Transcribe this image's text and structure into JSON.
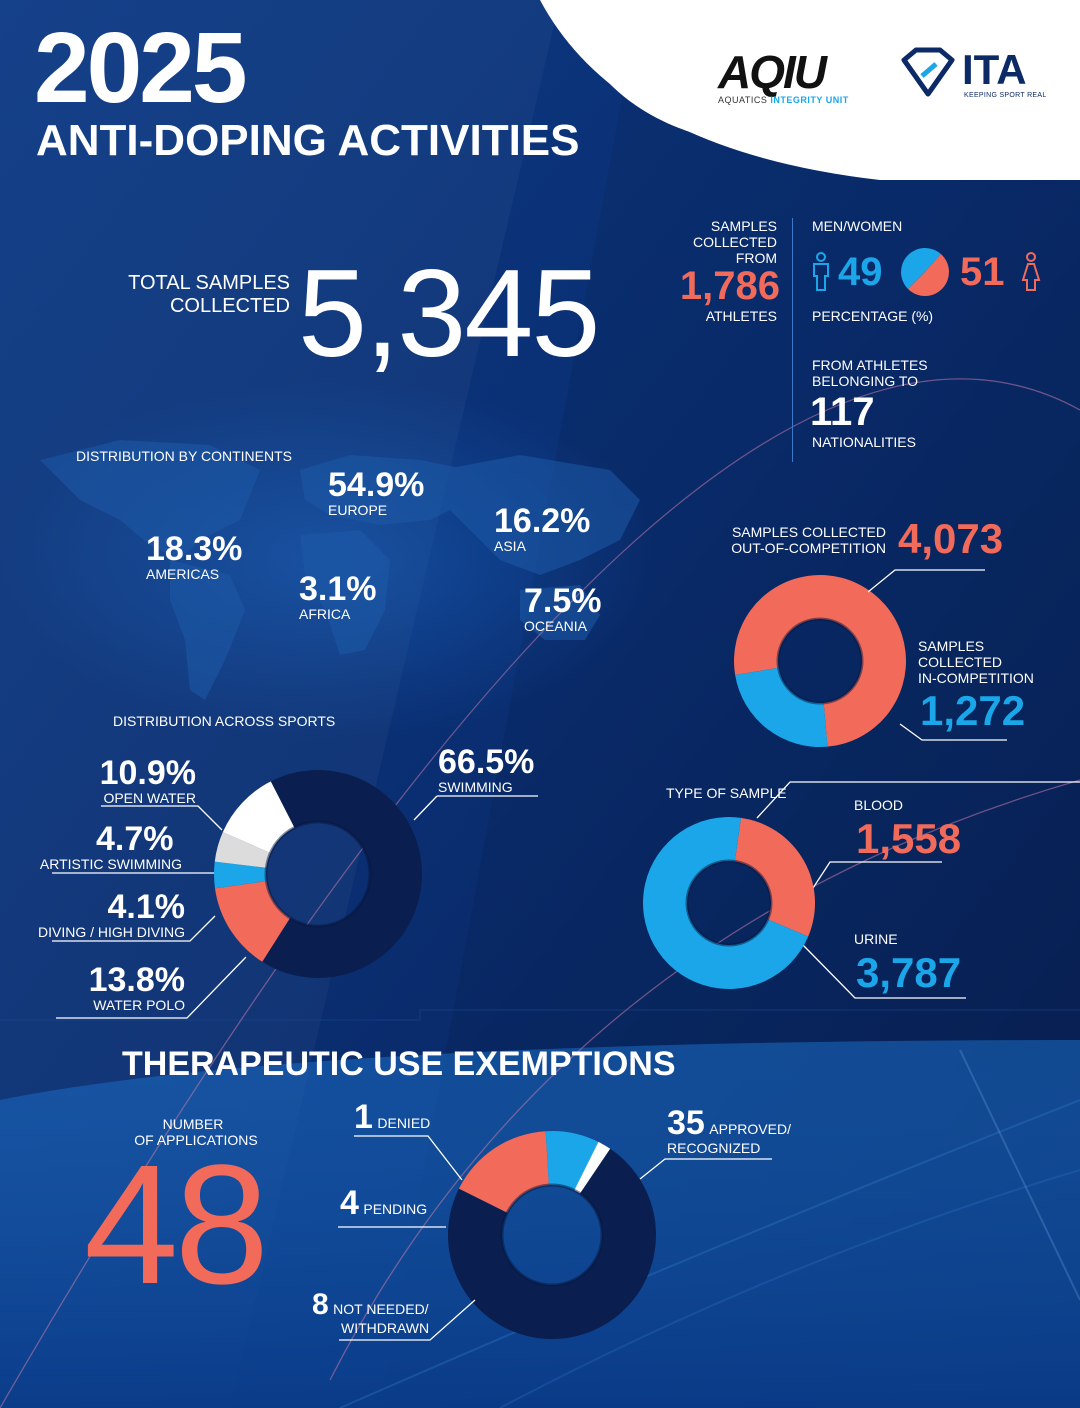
{
  "header": {
    "year": "2025",
    "title": "ANTI-DOPING ACTIVITIES",
    "aqiu_logo": "AQIU",
    "aqiu_sub1": "AQUATICS",
    "aqiu_sub2": "INTEGRITY UNIT",
    "ita_logo": "ITA",
    "ita_sub": "KEEPING SPORT REAL"
  },
  "totals": {
    "total_label_1": "TOTAL SAMPLES",
    "total_label_2": "COLLECTED",
    "total_value": "5,345",
    "athletes_label_1": "SAMPLES",
    "athletes_label_2": "COLLECTED",
    "athletes_label_3": "FROM",
    "athletes_value": "1,786",
    "athletes_label_4": "ATHLETES",
    "men_women_label": "MEN/WOMEN",
    "men_value": "49",
    "women_value": "51",
    "percentage_label": "PERCENTAGE (%)",
    "nationalities_label_1": "FROM ATHLETES",
    "nationalities_label_2": "BELONGING TO",
    "nationalities_value": "117",
    "nationalities_label_3": "NATIONALITIES"
  },
  "continents": {
    "title": "DISTRIBUTION BY CONTINENTS",
    "items": [
      {
        "name": "EUROPE",
        "value": "54.9%"
      },
      {
        "name": "ASIA",
        "value": "16.2%"
      },
      {
        "name": "AMERICAS",
        "value": "18.3%"
      },
      {
        "name": "AFRICA",
        "value": "3.1%"
      },
      {
        "name": "OCEANIA",
        "value": "7.5%"
      }
    ]
  },
  "sports": {
    "title": "DISTRIBUTION ACROSS SPORTS",
    "items": [
      {
        "name": "SWIMMING",
        "value": "66.5%"
      },
      {
        "name": "OPEN WATER",
        "value": "10.9%"
      },
      {
        "name": "ARTISTIC SWIMMING",
        "value": "4.7%"
      },
      {
        "name": "DIVING / HIGH DIVING",
        "value": "4.1%"
      },
      {
        "name": "WATER POLO",
        "value": "13.8%"
      }
    ]
  },
  "competition": {
    "ooc_label_1": "SAMPLES COLLECTED",
    "ooc_label_2": "OUT-OF-COMPETITION",
    "ooc_value": "4,073",
    "ic_label_1": "SAMPLES",
    "ic_label_2": "COLLECTED",
    "ic_label_3": "IN-COMPETITION",
    "ic_value": "1,272"
  },
  "sample_type": {
    "title": "TYPE OF SAMPLE",
    "blood_label": "BLOOD",
    "blood_value": "1,558",
    "urine_label": "URINE",
    "urine_value": "3,787"
  },
  "tue": {
    "title": "THERAPEUTIC USE EXEMPTIONS",
    "apps_label_1": "NUMBER",
    "apps_label_2": "OF APPLICATIONS",
    "apps_value": "48",
    "denied_value": "1",
    "denied_label": "DENIED",
    "pending_value": "4",
    "pending_label": "PENDING",
    "notneeded_value": "8",
    "notneeded_label_1": "NOT NEEDED/",
    "notneeded_label_2": "WITHDRAWN",
    "approved_value": "35",
    "approved_label_1": "APPROVED/",
    "approved_label_2": "RECOGNIZED"
  },
  "colors": {
    "navy": "#0b2a66",
    "dark_navy": "#0a1f4f",
    "coral": "#f26a5a",
    "light_blue": "#1aa6e8",
    "white": "#ffffff",
    "light_grey": "#dcdcdc"
  },
  "chart_data": [
    {
      "type": "pie",
      "chart": "men-women",
      "categories": [
        "MEN",
        "WOMEN"
      ],
      "values": [
        49,
        51
      ]
    },
    {
      "type": "pie",
      "chart": "distribution-across-sports",
      "categories": [
        "SWIMMING",
        "WATER POLO",
        "DIVING / HIGH DIVING",
        "ARTISTIC SWIMMING",
        "OPEN WATER"
      ],
      "values": [
        66.5,
        13.8,
        4.1,
        4.7,
        10.9
      ]
    },
    {
      "type": "pie",
      "chart": "competition",
      "categories": [
        "OUT-OF-COMPETITION",
        "IN-COMPETITION"
      ],
      "values": [
        4073,
        1272
      ]
    },
    {
      "type": "pie",
      "chart": "type-of-sample",
      "categories": [
        "BLOOD",
        "URINE"
      ],
      "values": [
        1558,
        3787
      ]
    },
    {
      "type": "pie",
      "chart": "therapeutic-use-exemptions",
      "categories": [
        "APPROVED/RECOGNIZED",
        "NOT NEEDED/WITHDRAWN",
        "PENDING",
        "DENIED"
      ],
      "values": [
        35,
        8,
        4,
        1
      ]
    }
  ]
}
